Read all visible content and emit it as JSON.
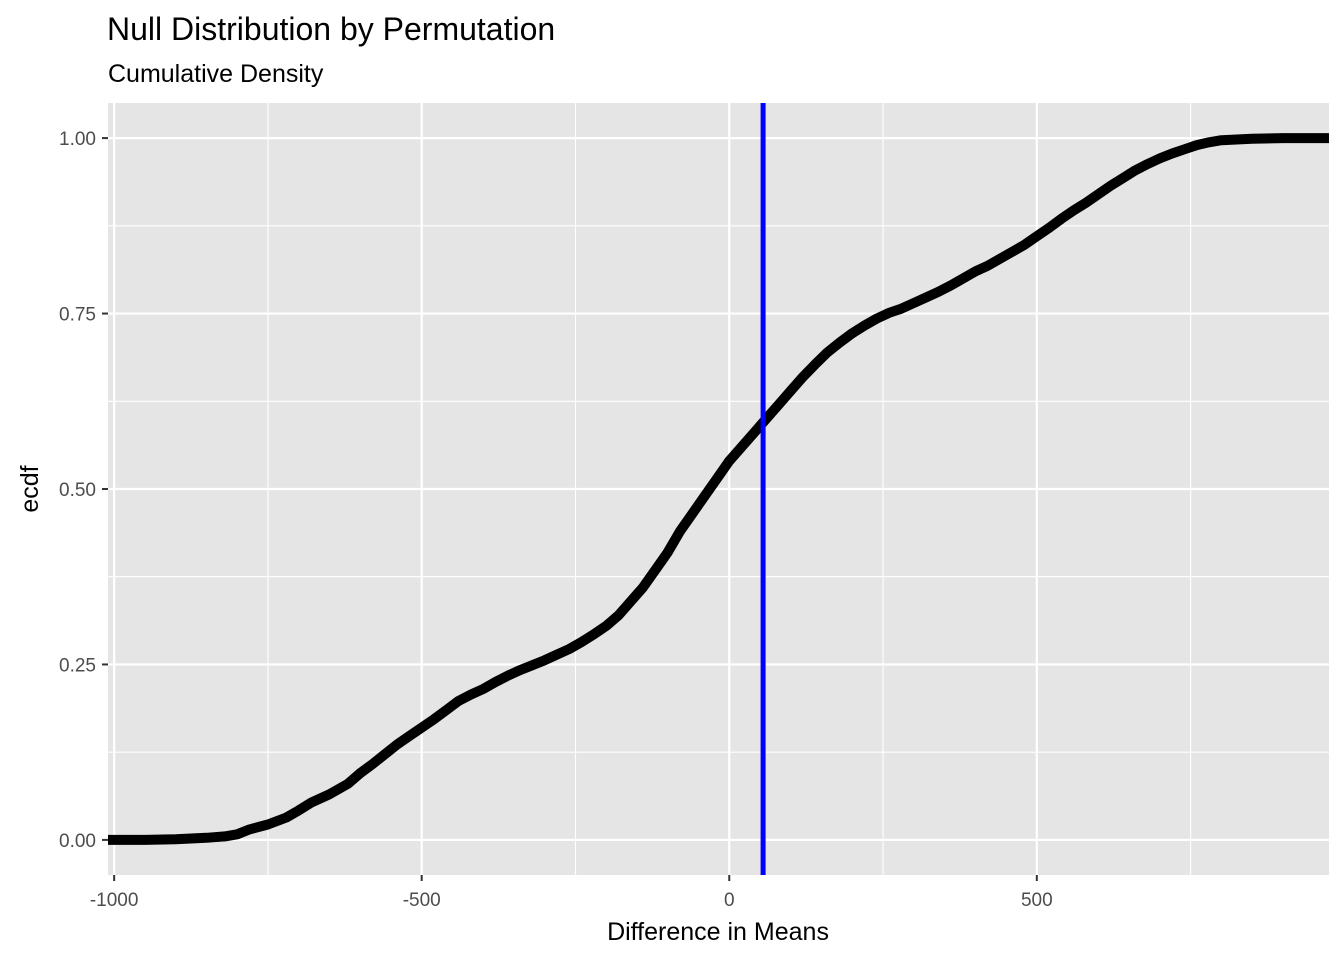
{
  "chart_data": {
    "type": "line",
    "title": "Null Distribution by Permutation",
    "subtitle": "Cumulative Density",
    "xlabel": "Difference in Means",
    "ylabel": "ecdf",
    "xlim": [
      -1010,
      975
    ],
    "ylim": [
      -0.05,
      1.05
    ],
    "x_ticks": [
      -1000,
      -500,
      0,
      500
    ],
    "x_tick_labels": [
      "-1000",
      "-500",
      "0",
      "500"
    ],
    "y_ticks": [
      0,
      0.25,
      0.5,
      0.75,
      1
    ],
    "y_tick_labels": [
      "0.00",
      "0.25",
      "0.50",
      "0.75",
      "1.00"
    ],
    "grid": true,
    "series": [
      {
        "x": [
          -1010,
          -950,
          -900,
          -850,
          -820,
          -800,
          -780,
          -750,
          -720,
          -700,
          -680,
          -650,
          -620,
          -600,
          -580,
          -560,
          -540,
          -520,
          -500,
          -480,
          -460,
          -440,
          -420,
          -400,
          -380,
          -360,
          -340,
          -320,
          -300,
          -280,
          -260,
          -240,
          -220,
          -200,
          -180,
          -160,
          -140,
          -120,
          -100,
          -80,
          -60,
          -40,
          -20,
          0,
          20,
          40,
          60,
          80,
          100,
          120,
          140,
          160,
          180,
          200,
          220,
          240,
          260,
          280,
          300,
          320,
          340,
          360,
          380,
          400,
          420,
          440,
          460,
          480,
          500,
          520,
          540,
          560,
          580,
          600,
          620,
          640,
          660,
          680,
          700,
          720,
          740,
          760,
          780,
          800,
          850,
          900,
          975
        ],
        "y": [
          0,
          0,
          0.001,
          0.003,
          0.005,
          0.008,
          0.015,
          0.022,
          0.032,
          0.042,
          0.053,
          0.065,
          0.08,
          0.095,
          0.108,
          0.122,
          0.136,
          0.148,
          0.16,
          0.172,
          0.185,
          0.198,
          0.207,
          0.215,
          0.225,
          0.234,
          0.242,
          0.249,
          0.256,
          0.264,
          0.272,
          0.282,
          0.293,
          0.305,
          0.32,
          0.34,
          0.36,
          0.385,
          0.41,
          0.44,
          0.465,
          0.49,
          0.515,
          0.54,
          0.56,
          0.58,
          0.6,
          0.62,
          0.64,
          0.66,
          0.678,
          0.695,
          0.709,
          0.722,
          0.733,
          0.743,
          0.751,
          0.757,
          0.765,
          0.773,
          0.781,
          0.79,
          0.8,
          0.81,
          0.818,
          0.828,
          0.838,
          0.848,
          0.86,
          0.872,
          0.885,
          0.897,
          0.908,
          0.92,
          0.932,
          0.943,
          0.954,
          0.963,
          0.971,
          0.978,
          0.984,
          0.99,
          0.994,
          0.997,
          0.999,
          1,
          1
        ]
      }
    ],
    "vline": {
      "x": 55,
      "color": "#0000ff"
    },
    "colors": {
      "panel": "#e5e5e5",
      "grid": "#ffffff",
      "line": "#000000"
    }
  }
}
